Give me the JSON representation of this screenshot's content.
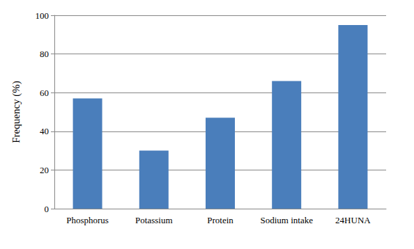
{
  "chart_data": {
    "type": "bar",
    "y_label": "Frequency (%)",
    "categories": [
      "Phosphorus",
      "Potassium",
      "Protein",
      "Sodium intake",
      "24HUNA"
    ],
    "values": [
      57,
      30,
      47,
      66,
      95
    ],
    "color": "#4a7ebb",
    "ylim": [
      0,
      100
    ],
    "yticks": [
      0,
      20,
      40,
      60,
      80,
      100
    ],
    "grid": true
  }
}
